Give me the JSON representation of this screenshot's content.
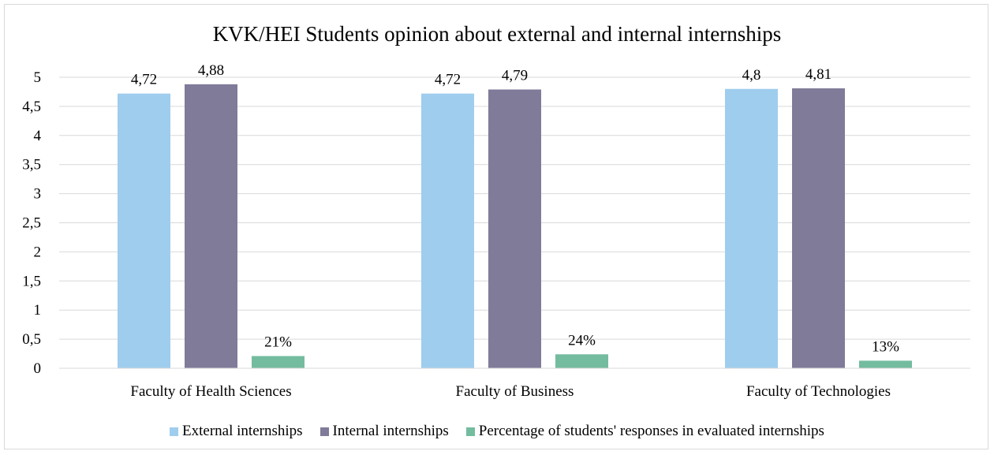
{
  "chart_data": {
    "type": "bar",
    "title": "KVK/HEI Students opinion about external and internal internships",
    "categories": [
      "Faculty of Health Sciences",
      "Faculty of Business",
      "Faculty of Technologies"
    ],
    "series": [
      {
        "name": "External internships",
        "values": [
          4.72,
          4.72,
          4.8
        ],
        "labels": [
          "4,72",
          "4,72",
          "4,8"
        ],
        "color": "#9fcdee"
      },
      {
        "name": "Internal internships",
        "values": [
          4.88,
          4.79,
          4.81
        ],
        "labels": [
          "4,88",
          "4,79",
          "4,81"
        ],
        "color": "#7f7b99"
      },
      {
        "name": "Percentage of students' responses in evaluated internships",
        "values": [
          0.21,
          0.24,
          0.13
        ],
        "labels": [
          "21%",
          "24%",
          "13%"
        ],
        "color": "#74bc9f"
      }
    ],
    "y_ticks": [
      0,
      0.5,
      1,
      1.5,
      2,
      2.5,
      3,
      3.5,
      4,
      4.5,
      5
    ],
    "y_tick_labels": [
      "0",
      "0,5",
      "1",
      "1,5",
      "2",
      "2,5",
      "3",
      "3,5",
      "4",
      "4,5",
      "5"
    ],
    "ylim": [
      0,
      5
    ],
    "grid": true,
    "legend_position": "bottom"
  }
}
